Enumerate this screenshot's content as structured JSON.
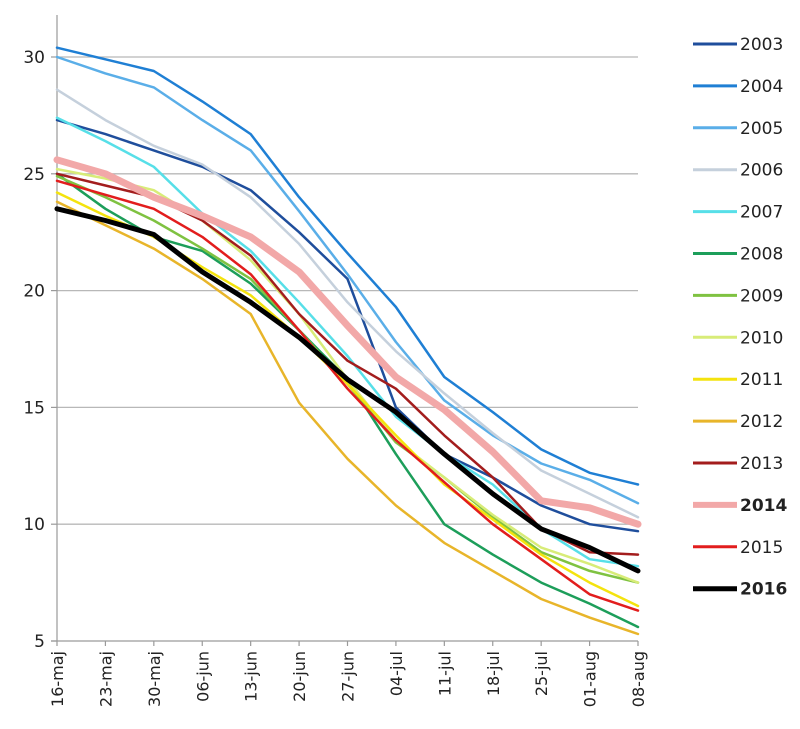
{
  "chart_data": {
    "type": "line",
    "title": "",
    "xlabel": "",
    "ylabel": "",
    "ylim": [
      5,
      32
    ],
    "yticks": [
      5,
      10,
      15,
      20,
      25,
      30
    ],
    "x_dates": [
      "2016-05-16",
      "2016-05-23",
      "2016-05-30",
      "2016-06-06",
      "2016-06-13",
      "2016-06-20",
      "2016-06-27",
      "2016-07-04",
      "2016-07-11",
      "2016-07-18",
      "2016-07-25",
      "2016-08-01",
      "2016-08-08"
    ],
    "x_tick_labels": [
      "16-maj",
      "23-maj",
      "30-maj",
      "06-jun",
      "13-jun",
      "20-jun",
      "27-jun",
      "04-jul",
      "11-jul",
      "18-jul",
      "25-jul",
      "01-aug",
      "08-aug"
    ],
    "grid": "horizontal",
    "legend_position": "right",
    "series": [
      {
        "name": "2003",
        "color": "#1f4e9c",
        "bold": false,
        "width": 2.5,
        "values": [
          27.3,
          26.7,
          26.0,
          25.3,
          24.3,
          22.5,
          20.5,
          15.0,
          13.0,
          12.0,
          10.8,
          10.0,
          9.7
        ]
      },
      {
        "name": "2004",
        "color": "#1f7fd4",
        "bold": false,
        "width": 2.5,
        "values": [
          30.4,
          29.9,
          29.4,
          28.1,
          26.7,
          24.0,
          21.6,
          19.3,
          16.3,
          14.8,
          13.2,
          12.2,
          11.7
        ]
      },
      {
        "name": "2005",
        "color": "#5aaee8",
        "bold": false,
        "width": 2.5,
        "values": [
          30.0,
          29.3,
          28.7,
          27.3,
          26.0,
          23.4,
          20.7,
          17.8,
          15.3,
          13.8,
          12.6,
          11.9,
          10.9
        ]
      },
      {
        "name": "2006",
        "color": "#c5d0dc",
        "bold": false,
        "width": 2.5,
        "values": [
          28.6,
          27.3,
          26.2,
          25.4,
          24.0,
          22.0,
          19.5,
          17.4,
          15.6,
          13.9,
          12.3,
          11.3,
          10.3
        ]
      },
      {
        "name": "2007",
        "color": "#57dfe8",
        "bold": false,
        "width": 2.5,
        "values": [
          27.4,
          26.4,
          25.3,
          23.3,
          21.7,
          19.5,
          17.2,
          14.6,
          13.0,
          11.7,
          9.8,
          8.5,
          8.2
        ]
      },
      {
        "name": "2008",
        "color": "#1d9e5a",
        "bold": false,
        "width": 2.5,
        "values": [
          25.0,
          23.5,
          22.3,
          21.7,
          20.3,
          18.3,
          16.2,
          13.0,
          10.0,
          8.7,
          7.5,
          6.6,
          5.6
        ]
      },
      {
        "name": "2009",
        "color": "#7fc241",
        "bold": false,
        "width": 2.5,
        "values": [
          24.9,
          24.0,
          23.0,
          21.8,
          20.5,
          18.3,
          16.0,
          13.5,
          12.0,
          10.3,
          8.8,
          8.0,
          7.5
        ]
      },
      {
        "name": "2010",
        "color": "#d8ec78",
        "bold": false,
        "width": 2.5,
        "values": [
          25.2,
          24.8,
          24.3,
          23.0,
          21.3,
          19.0,
          16.2,
          13.6,
          12.0,
          10.4,
          9.0,
          8.3,
          7.5
        ]
      },
      {
        "name": "2011",
        "color": "#f4e30e",
        "bold": false,
        "width": 2.5,
        "values": [
          24.2,
          23.2,
          22.3,
          21.0,
          19.8,
          18.0,
          16.0,
          13.8,
          11.7,
          10.2,
          8.7,
          7.5,
          6.5
        ]
      },
      {
        "name": "2012",
        "color": "#e8b52a",
        "bold": false,
        "width": 2.5,
        "values": [
          23.8,
          22.8,
          21.8,
          20.5,
          19.0,
          15.2,
          12.8,
          10.8,
          9.2,
          8.0,
          6.8,
          6.0,
          5.3
        ]
      },
      {
        "name": "2013",
        "color": "#a31d1d",
        "bold": false,
        "width": 2.5,
        "values": [
          25.0,
          24.5,
          24.0,
          23.0,
          21.5,
          19.0,
          17.0,
          15.8,
          13.8,
          12.0,
          9.8,
          8.8,
          8.7
        ]
      },
      {
        "name": "2014",
        "color": "#f2a8a8",
        "bold": true,
        "width": 7,
        "values": [
          25.6,
          25.0,
          24.0,
          23.2,
          22.3,
          20.8,
          18.5,
          16.3,
          14.9,
          13.1,
          11.0,
          10.7,
          10.0
        ]
      },
      {
        "name": "2015",
        "color": "#e21d1d",
        "bold": false,
        "width": 2.5,
        "values": [
          24.7,
          24.1,
          23.5,
          22.3,
          20.7,
          18.3,
          15.8,
          13.6,
          11.8,
          10.0,
          8.5,
          7.0,
          6.3
        ]
      },
      {
        "name": "2016",
        "color": "#000000",
        "bold": true,
        "width": 5,
        "values": [
          23.5,
          23.0,
          22.4,
          20.8,
          19.5,
          18.0,
          16.2,
          14.8,
          13.0,
          11.3,
          9.8,
          9.0,
          8.0
        ]
      }
    ]
  }
}
